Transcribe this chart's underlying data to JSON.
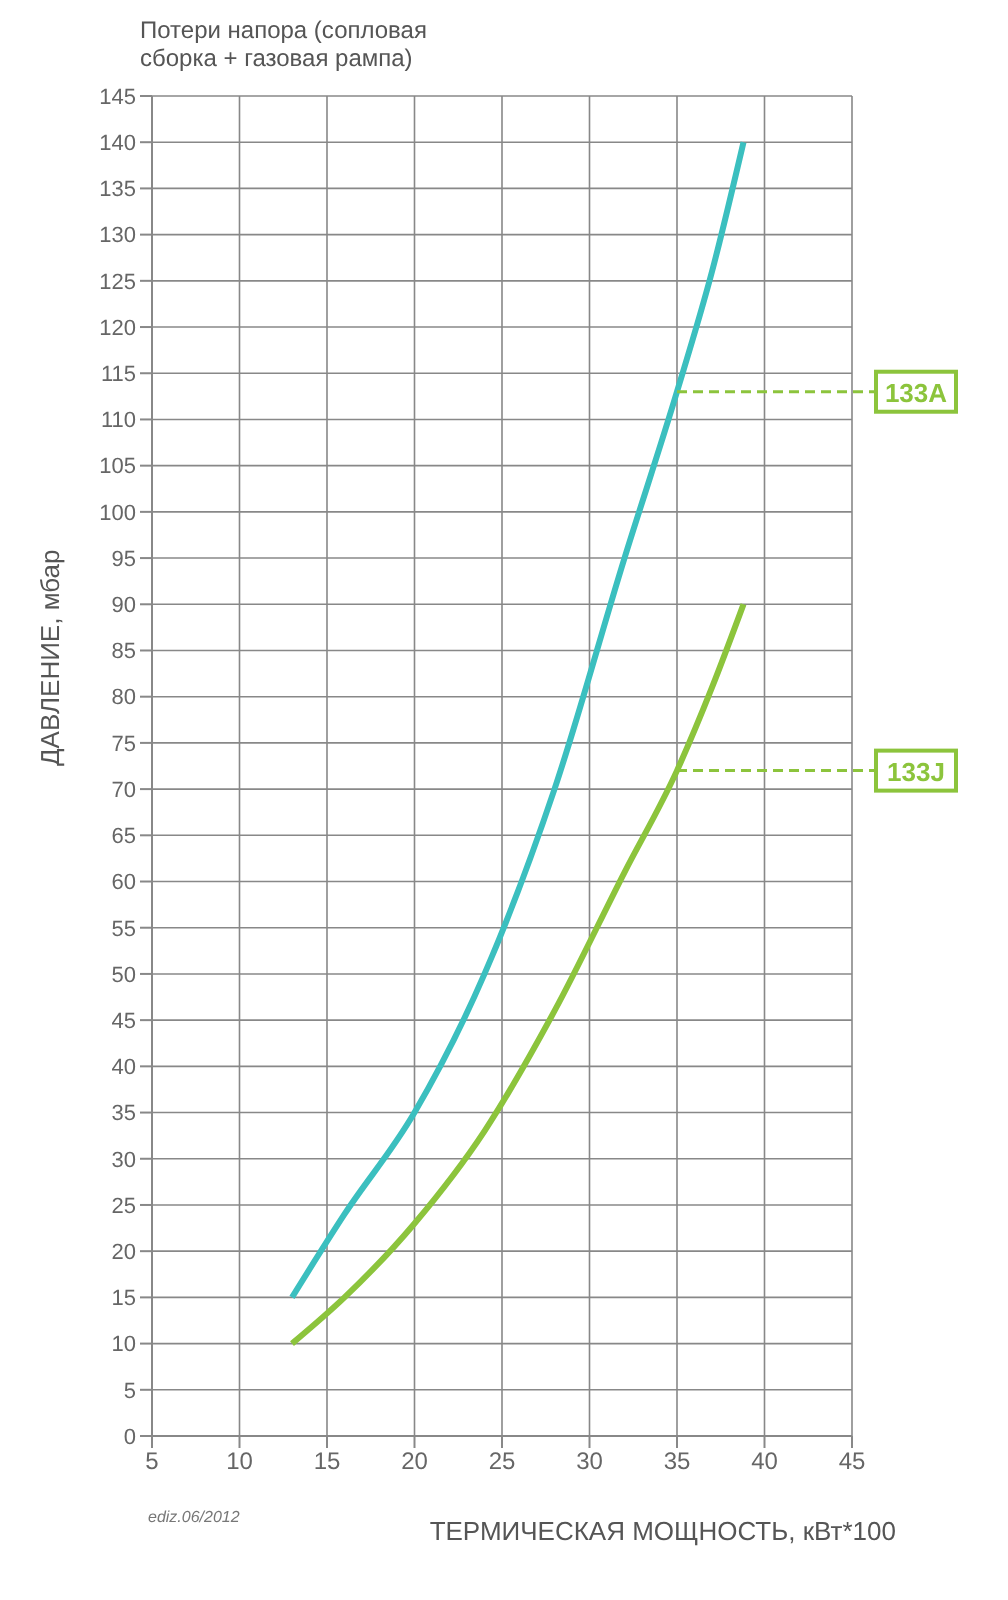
{
  "chart_data": {
    "type": "line",
    "title": "Потери напора (сопловая сборка + газовая рампа)",
    "xlabel": "ТЕРМИЧЕСКАЯ МОЩНОСТЬ, кВт*100",
    "ylabel": "ДАВЛЕНИЕ, мбар",
    "x": [
      13,
      16,
      20,
      24,
      28,
      32,
      35,
      37,
      38.8
    ],
    "series": [
      {
        "color": "#3bbfbf",
        "values": [
          15,
          24,
          35,
          50,
          70,
          95,
          113,
          126,
          140
        ]
      },
      {
        "color": "#8cc43c",
        "values": [
          10,
          15,
          23,
          33,
          46,
          61,
          72,
          81,
          90
        ]
      }
    ],
    "xlim": [
      5,
      45
    ],
    "xticks": [
      5,
      10,
      15,
      20,
      25,
      30,
      35,
      40,
      45
    ],
    "ylim": [
      0,
      145
    ],
    "yticks": [
      0,
      5,
      10,
      15,
      20,
      25,
      30,
      35,
      40,
      45,
      50,
      55,
      60,
      65,
      70,
      75,
      80,
      85,
      90,
      95,
      100,
      105,
      110,
      115,
      120,
      125,
      130,
      135,
      140,
      145
    ],
    "grid": true,
    "marker": "none",
    "line_style": "solid",
    "annotations": [
      {
        "text": "133A",
        "x": 35,
        "y": 113
      },
      {
        "text": "133J",
        "x": 35,
        "y": 72
      },
      "ediz.06/2012"
    ]
  }
}
